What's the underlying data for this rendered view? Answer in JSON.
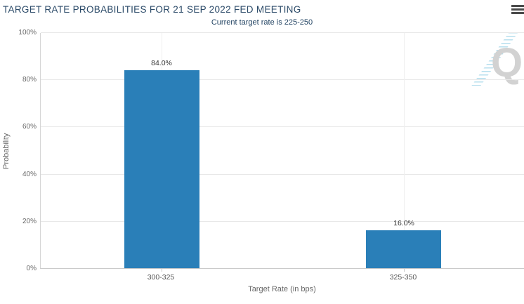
{
  "header": {
    "menu_icon": "hamburger-menu"
  },
  "chart_data": {
    "type": "bar",
    "title": "TARGET RATE PROBABILITIES FOR 21 SEP 2022 FED MEETING",
    "subtitle": "Current target rate is 225-250",
    "categories": [
      "300-325",
      "325-350"
    ],
    "values": [
      84.0,
      16.0
    ],
    "value_labels": [
      "84.0%",
      "16.0%"
    ],
    "xlabel": "Target Rate (in bps)",
    "ylabel": "Probability",
    "ylim": [
      0,
      100
    ],
    "yticks": [
      0,
      20,
      40,
      60,
      80,
      100
    ],
    "ytick_labels": [
      "0%",
      "20%",
      "40%",
      "60%",
      "80%",
      "100%"
    ],
    "grid": true,
    "legend": false,
    "bar_color": "#2a7fb8"
  },
  "watermark": {
    "letter": "Q"
  },
  "colors": {
    "bar": "#2a7fb8",
    "title": "#2b4a68",
    "subtitle": "#1d3f5f",
    "axis_text": "#666666",
    "value_label": "#333333",
    "gridline": "#e8e8e8",
    "axis_line": "#c9c9c9",
    "watermark": "#d2d2d2",
    "watermark_swoosh": "#9fd4e8",
    "menu_icon": "#4a4a4a"
  }
}
